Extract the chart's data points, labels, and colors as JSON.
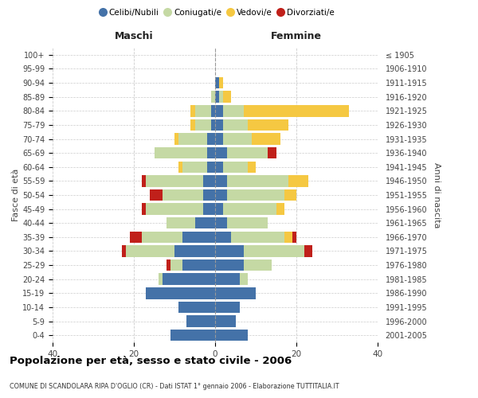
{
  "age_groups": [
    "0-4",
    "5-9",
    "10-14",
    "15-19",
    "20-24",
    "25-29",
    "30-34",
    "35-39",
    "40-44",
    "45-49",
    "50-54",
    "55-59",
    "60-64",
    "65-69",
    "70-74",
    "75-79",
    "80-84",
    "85-89",
    "90-94",
    "95-99",
    "100+"
  ],
  "birth_years": [
    "2001-2005",
    "1996-2000",
    "1991-1995",
    "1986-1990",
    "1981-1985",
    "1976-1980",
    "1971-1975",
    "1966-1970",
    "1961-1965",
    "1956-1960",
    "1951-1955",
    "1946-1950",
    "1941-1945",
    "1936-1940",
    "1931-1935",
    "1926-1930",
    "1921-1925",
    "1916-1920",
    "1911-1915",
    "1906-1910",
    "≤ 1905"
  ],
  "maschi": {
    "celibi": [
      11,
      7,
      9,
      17,
      13,
      8,
      10,
      8,
      5,
      3,
      3,
      3,
      2,
      2,
      2,
      1,
      1,
      0,
      0,
      0,
      0
    ],
    "coniugati": [
      0,
      0,
      0,
      0,
      1,
      3,
      12,
      10,
      7,
      14,
      10,
      14,
      6,
      13,
      7,
      4,
      4,
      1,
      0,
      0,
      0
    ],
    "vedovi": [
      0,
      0,
      0,
      0,
      0,
      0,
      0,
      0,
      0,
      0,
      0,
      0,
      1,
      0,
      1,
      1,
      1,
      0,
      0,
      0,
      0
    ],
    "divorziati": [
      0,
      0,
      0,
      0,
      0,
      1,
      1,
      3,
      0,
      1,
      3,
      1,
      0,
      0,
      0,
      0,
      0,
      0,
      0,
      0,
      0
    ]
  },
  "femmine": {
    "nubili": [
      8,
      5,
      6,
      10,
      6,
      7,
      7,
      4,
      3,
      2,
      3,
      3,
      2,
      3,
      2,
      2,
      2,
      1,
      1,
      0,
      0
    ],
    "coniugate": [
      0,
      0,
      0,
      0,
      2,
      7,
      15,
      13,
      10,
      13,
      14,
      15,
      6,
      10,
      7,
      6,
      5,
      1,
      0,
      0,
      0
    ],
    "vedove": [
      0,
      0,
      0,
      0,
      0,
      0,
      0,
      2,
      0,
      2,
      3,
      5,
      2,
      0,
      7,
      10,
      26,
      2,
      1,
      0,
      0
    ],
    "divorziate": [
      0,
      0,
      0,
      0,
      0,
      0,
      2,
      1,
      0,
      0,
      0,
      0,
      0,
      2,
      0,
      0,
      0,
      0,
      0,
      0,
      0
    ]
  },
  "colors": {
    "celibi": "#4472a8",
    "coniugati": "#c5d9a4",
    "vedovi": "#f5c842",
    "divorziati": "#c0201a"
  },
  "xlim": 40,
  "title": "Popolazione per età, sesso e stato civile - 2006",
  "subtitle": "COMUNE DI SCANDOLARA RIPA D'OGLIO (CR) - Dati ISTAT 1° gennaio 2006 - Elaborazione TUTTITALIA.IT",
  "ylabel_left": "Fasce di età",
  "ylabel_right": "Anni di nascita",
  "xlabel_left": "Maschi",
  "xlabel_right": "Femmine"
}
